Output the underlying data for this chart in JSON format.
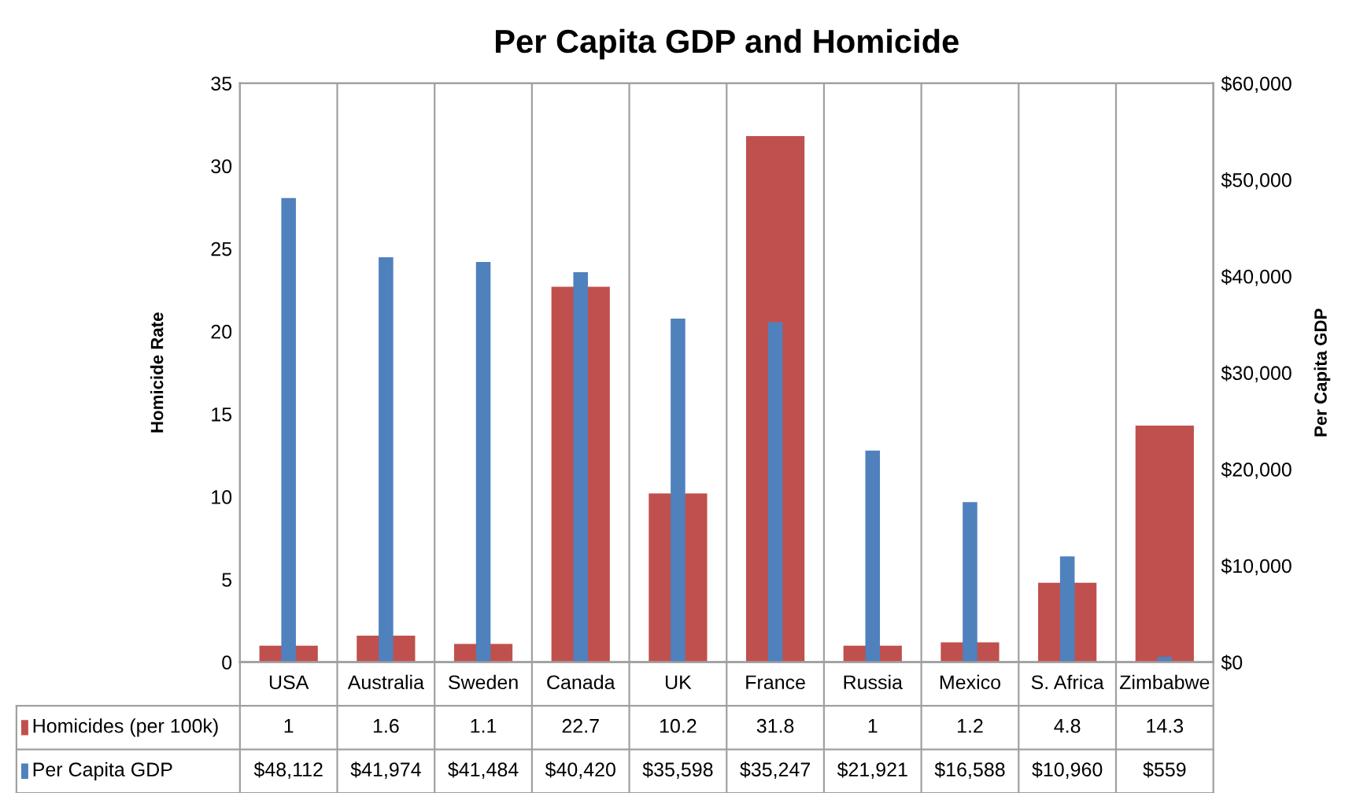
{
  "chart_data": {
    "type": "bar",
    "title": "Per Capita GDP and Homicide",
    "ylabel": "Homicide Rate",
    "y2label": "Per Capita GDP",
    "categories": [
      "USA",
      "Australia",
      "Sweden",
      "Canada",
      "UK",
      "France",
      "Russia",
      "Mexico",
      "S. Africa",
      "Zimbabwe"
    ],
    "series": [
      {
        "name": "Homicides (per 100k)",
        "color": "#c0504d",
        "values": [
          1,
          1.6,
          1.1,
          22.7,
          10.2,
          31.8,
          1,
          1.2,
          4.8,
          14.3
        ],
        "value_labels": [
          "1",
          "1.6",
          "1.1",
          "22.7",
          "10.2",
          "31.8",
          "1",
          "1.2",
          "4.8",
          "14.3"
        ]
      },
      {
        "name": "Per Capita GDP",
        "color": "#4f81bd",
        "axis": "y2",
        "values": [
          48112,
          41974,
          41484,
          40420,
          35598,
          35247,
          21921,
          16588,
          10960,
          559
        ],
        "value_labels": [
          "$48,112",
          "$41,974",
          "$41,484",
          "$40,420",
          "$35,598",
          "$35,247",
          "$21,921",
          "$16,588",
          "$10,960",
          "$559"
        ]
      }
    ],
    "ylim": [
      0,
      35
    ],
    "yticks": [
      0,
      5,
      10,
      15,
      20,
      25,
      30,
      35
    ],
    "y2lim": [
      0,
      60000
    ],
    "y2ticks": [
      {
        "value": 0,
        "label": "$0"
      },
      {
        "value": 10000,
        "label": "$10,000"
      },
      {
        "value": 20000,
        "label": "$20,000"
      },
      {
        "value": 30000,
        "label": "$30,000"
      },
      {
        "value": 40000,
        "label": "$40,000"
      },
      {
        "value": 50000,
        "label": "$50,000"
      },
      {
        "value": 60000,
        "label": "$60,000"
      }
    ],
    "grid": "x",
    "legend": "bottom"
  }
}
